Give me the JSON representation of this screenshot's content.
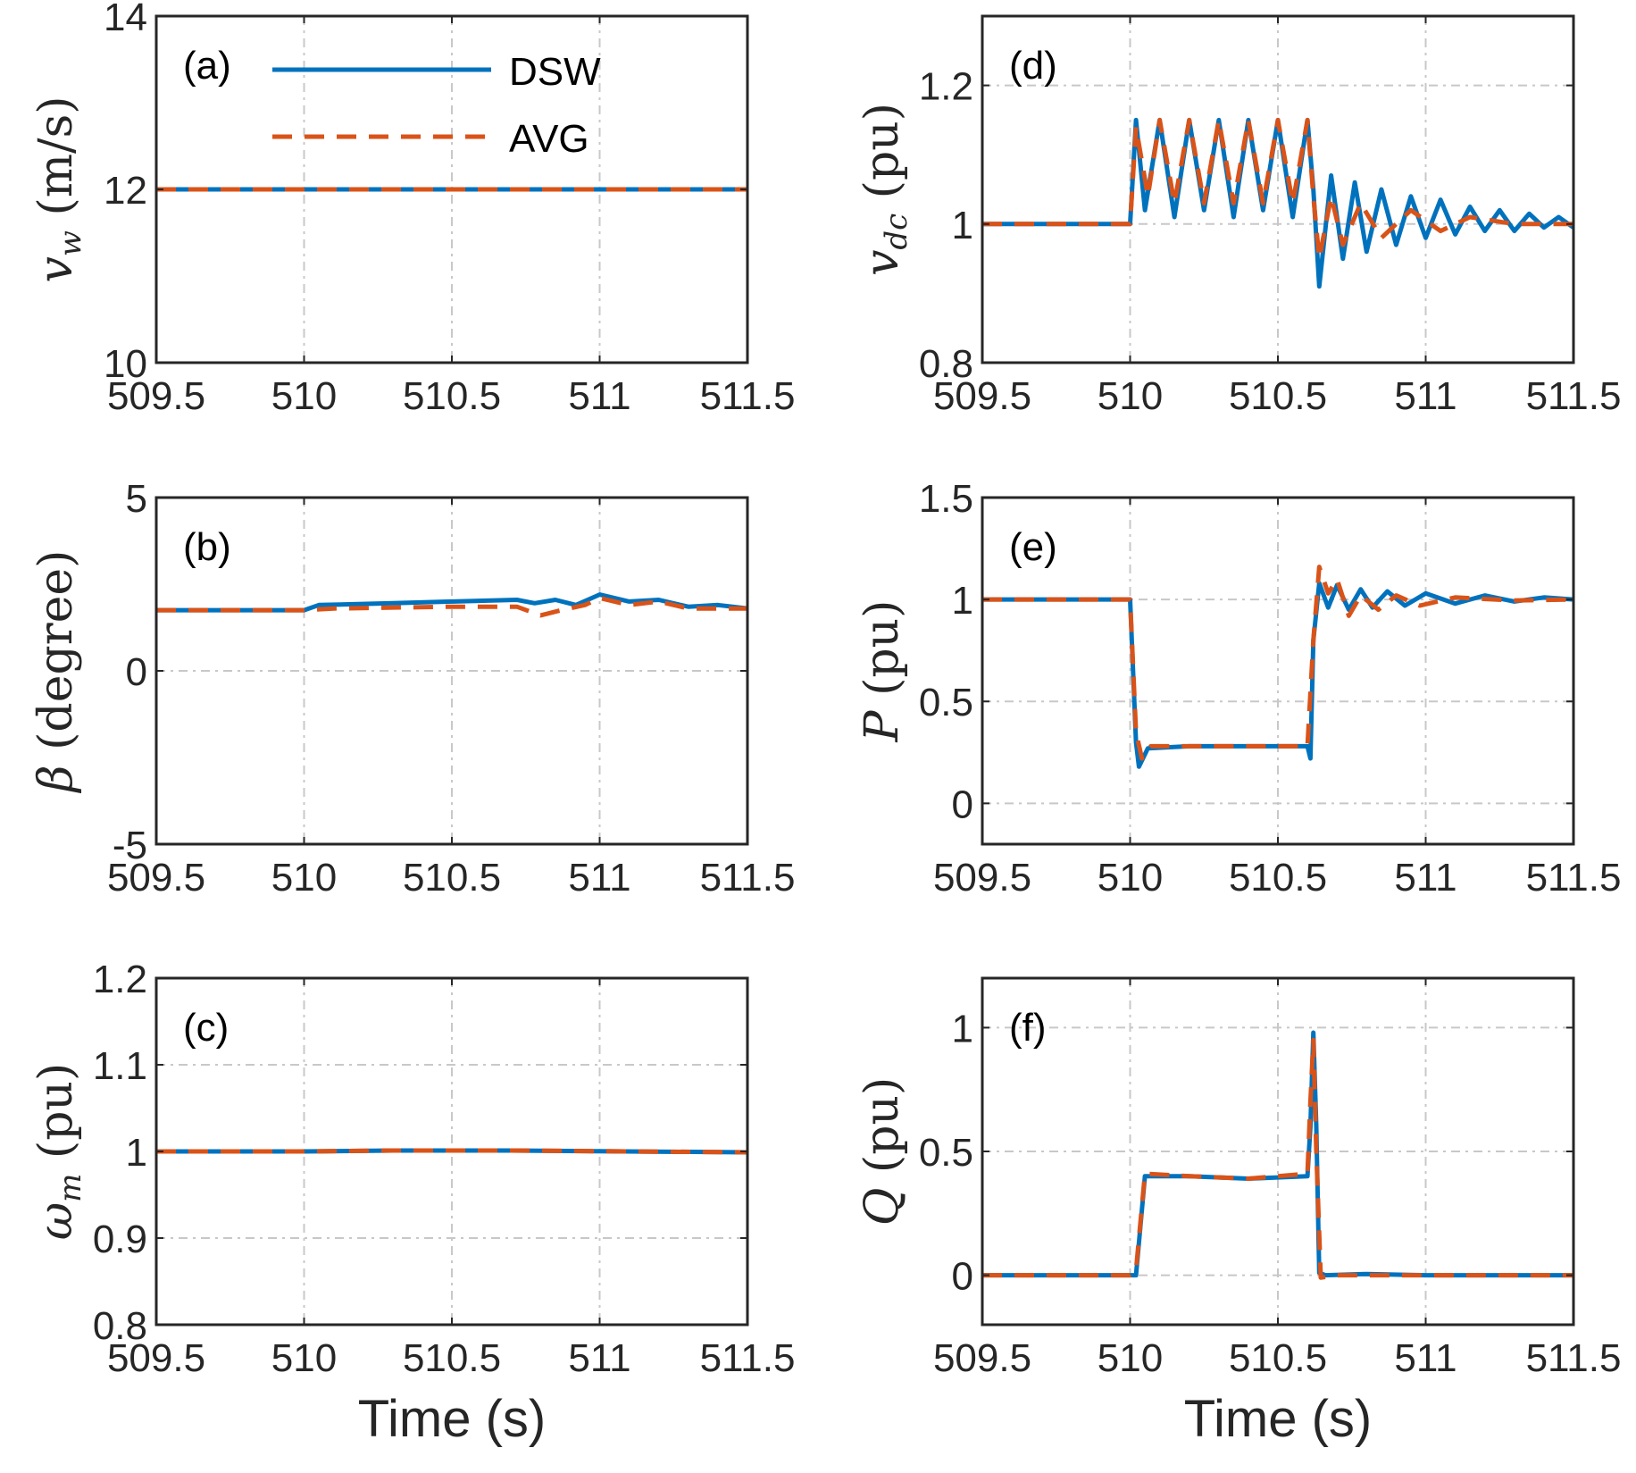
{
  "colors": {
    "dsw": "#0072BD",
    "avg": "#D95319",
    "axis": "#262626",
    "grid": "#c8c8c8"
  },
  "legend": {
    "dsw_label": "DSW",
    "avg_label": "AVG"
  },
  "xlabel": "Time (s)",
  "chart_data": [
    {
      "id": "a",
      "type": "line",
      "panel_label": "(a)",
      "ylabel": {
        "sym": "v",
        "sub": "w",
        "unit": " (m/s)"
      },
      "xlim": [
        509.5,
        511.5
      ],
      "ylim": [
        10,
        14
      ],
      "xticks": [
        509.5,
        510,
        510.5,
        511,
        511.5
      ],
      "xtick_labels": [
        "509.5",
        "510",
        "510.5",
        "511",
        "511.5"
      ],
      "yticks": [
        10,
        12,
        14
      ],
      "ytick_labels": [
        "10",
        "12",
        "14"
      ],
      "grid": true,
      "legend": true,
      "series": [
        {
          "name": "DSW",
          "points": [
            [
              509.5,
              12
            ],
            [
              511.5,
              12
            ]
          ]
        },
        {
          "name": "AVG",
          "points": [
            [
              509.5,
              12
            ],
            [
              511.5,
              12
            ]
          ]
        }
      ]
    },
    {
      "id": "b",
      "type": "line",
      "panel_label": "(b)",
      "ylabel": {
        "sym": "β",
        "sub": "",
        "unit": " (degree)"
      },
      "xlim": [
        509.5,
        511.5
      ],
      "ylim": [
        -5,
        5
      ],
      "xticks": [
        509.5,
        510,
        510.5,
        511,
        511.5
      ],
      "xtick_labels": [
        "509.5",
        "510",
        "510.5",
        "511",
        "511.5"
      ],
      "yticks": [
        -5,
        0,
        5
      ],
      "ytick_labels": [
        "-5",
        "0",
        "5"
      ],
      "grid": true,
      "legend": false,
      "series": [
        {
          "name": "DSW",
          "points": [
            [
              509.5,
              1.75
            ],
            [
              510.0,
              1.75
            ],
            [
              510.05,
              1.9
            ],
            [
              510.3,
              1.95
            ],
            [
              510.5,
              2.0
            ],
            [
              510.72,
              2.05
            ],
            [
              510.78,
              1.95
            ],
            [
              510.85,
              2.05
            ],
            [
              510.92,
              1.9
            ],
            [
              511.0,
              2.2
            ],
            [
              511.1,
              2.0
            ],
            [
              511.2,
              2.05
            ],
            [
              511.3,
              1.85
            ],
            [
              511.4,
              1.9
            ],
            [
              511.5,
              1.8
            ]
          ]
        },
        {
          "name": "AVG",
          "points": [
            [
              509.5,
              1.75
            ],
            [
              510.0,
              1.75
            ],
            [
              510.1,
              1.8
            ],
            [
              510.5,
              1.85
            ],
            [
              510.72,
              1.85
            ],
            [
              510.8,
              1.6
            ],
            [
              510.87,
              1.75
            ],
            [
              510.95,
              1.9
            ],
            [
              511.0,
              2.1
            ],
            [
              511.1,
              1.9
            ],
            [
              511.2,
              2.0
            ],
            [
              511.3,
              1.8
            ],
            [
              511.5,
              1.8
            ]
          ]
        }
      ]
    },
    {
      "id": "c",
      "type": "line",
      "panel_label": "(c)",
      "ylabel": {
        "sym": "ω",
        "sub": "m",
        "unit": " (pu)"
      },
      "xlim": [
        509.5,
        511.5
      ],
      "ylim": [
        0.8,
        1.2
      ],
      "xticks": [
        509.5,
        510,
        510.5,
        511,
        511.5
      ],
      "xtick_labels": [
        "509.5",
        "510",
        "510.5",
        "511",
        "511.5"
      ],
      "yticks": [
        0.8,
        0.9,
        1.0,
        1.1,
        1.2
      ],
      "ytick_labels": [
        "0.8",
        "0.9",
        "1",
        "1.1",
        "1.2"
      ],
      "grid": true,
      "legend": false,
      "series": [
        {
          "name": "DSW",
          "points": [
            [
              509.5,
              1.0
            ],
            [
              510.0,
              1.0
            ],
            [
              510.3,
              1.001
            ],
            [
              510.7,
              1.001
            ],
            [
              511.5,
              0.999
            ]
          ]
        },
        {
          "name": "AVG",
          "points": [
            [
              509.5,
              1.0
            ],
            [
              510.0,
              1.0
            ],
            [
              510.3,
              1.001
            ],
            [
              510.7,
              1.001
            ],
            [
              511.5,
              0.999
            ]
          ]
        }
      ]
    },
    {
      "id": "d",
      "type": "line",
      "panel_label": "(d)",
      "ylabel": {
        "sym": "v",
        "sub": "dc",
        "unit": " (pu)"
      },
      "xlim": [
        509.5,
        511.5
      ],
      "ylim": [
        0.8,
        1.3
      ],
      "xticks": [
        509.5,
        510,
        510.5,
        511,
        511.5
      ],
      "xtick_labels": [
        "509.5",
        "510",
        "510.5",
        "511",
        "511.5"
      ],
      "yticks": [
        0.8,
        1.0,
        1.2
      ],
      "ytick_labels": [
        "0.8",
        "1",
        "1.2"
      ],
      "grid": true,
      "legend": false,
      "series": [
        {
          "name": "DSW",
          "points": [
            [
              509.5,
              1.0
            ],
            [
              510.0,
              1.0
            ],
            [
              510.02,
              1.15
            ],
            [
              510.05,
              1.02
            ],
            [
              510.1,
              1.15
            ],
            [
              510.15,
              1.01
            ],
            [
              510.2,
              1.15
            ],
            [
              510.25,
              1.02
            ],
            [
              510.3,
              1.15
            ],
            [
              510.35,
              1.01
            ],
            [
              510.4,
              1.15
            ],
            [
              510.45,
              1.02
            ],
            [
              510.5,
              1.15
            ],
            [
              510.55,
              1.01
            ],
            [
              510.6,
              1.15
            ],
            [
              510.62,
              1.05
            ],
            [
              510.64,
              0.91
            ],
            [
              510.68,
              1.07
            ],
            [
              510.72,
              0.95
            ],
            [
              510.76,
              1.06
            ],
            [
              510.8,
              0.96
            ],
            [
              510.85,
              1.05
            ],
            [
              510.9,
              0.97
            ],
            [
              510.95,
              1.04
            ],
            [
              511.0,
              0.98
            ],
            [
              511.05,
              1.035
            ],
            [
              511.1,
              0.985
            ],
            [
              511.15,
              1.025
            ],
            [
              511.2,
              0.99
            ],
            [
              511.25,
              1.02
            ],
            [
              511.3,
              0.99
            ],
            [
              511.35,
              1.015
            ],
            [
              511.4,
              0.995
            ],
            [
              511.45,
              1.01
            ],
            [
              511.5,
              0.995
            ]
          ]
        },
        {
          "name": "AVG",
          "points": [
            [
              509.5,
              1.0
            ],
            [
              510.0,
              1.0
            ],
            [
              510.02,
              1.14
            ],
            [
              510.06,
              1.04
            ],
            [
              510.1,
              1.15
            ],
            [
              510.15,
              1.03
            ],
            [
              510.2,
              1.15
            ],
            [
              510.25,
              1.03
            ],
            [
              510.3,
              1.15
            ],
            [
              510.35,
              1.03
            ],
            [
              510.4,
              1.15
            ],
            [
              510.45,
              1.03
            ],
            [
              510.5,
              1.15
            ],
            [
              510.55,
              1.03
            ],
            [
              510.6,
              1.15
            ],
            [
              510.62,
              1.04
            ],
            [
              510.64,
              0.95
            ],
            [
              510.68,
              1.04
            ],
            [
              510.72,
              0.97
            ],
            [
              510.78,
              1.03
            ],
            [
              510.85,
              0.98
            ],
            [
              510.95,
              1.02
            ],
            [
              511.05,
              0.99
            ],
            [
              511.15,
              1.01
            ],
            [
              511.3,
              1.0
            ],
            [
              511.5,
              1.0
            ]
          ]
        }
      ]
    },
    {
      "id": "e",
      "type": "line",
      "panel_label": "(e)",
      "ylabel": {
        "sym": "P",
        "sub": "",
        "unit": " (pu)"
      },
      "xlim": [
        509.5,
        511.5
      ],
      "ylim": [
        -0.2,
        1.5
      ],
      "xticks": [
        509.5,
        510,
        510.5,
        511,
        511.5
      ],
      "xtick_labels": [
        "509.5",
        "510",
        "510.5",
        "511",
        "511.5"
      ],
      "yticks": [
        0,
        0.5,
        1.0,
        1.5
      ],
      "ytick_labels": [
        "0",
        "0.5",
        "1",
        "1.5"
      ],
      "grid": true,
      "legend": false,
      "series": [
        {
          "name": "DSW",
          "points": [
            [
              509.5,
              1.0
            ],
            [
              510.0,
              1.0
            ],
            [
              510.02,
              0.3
            ],
            [
              510.03,
              0.18
            ],
            [
              510.06,
              0.27
            ],
            [
              510.2,
              0.28
            ],
            [
              510.4,
              0.28
            ],
            [
              510.6,
              0.28
            ],
            [
              510.61,
              0.22
            ],
            [
              510.62,
              0.8
            ],
            [
              510.64,
              1.08
            ],
            [
              510.67,
              0.96
            ],
            [
              510.7,
              1.07
            ],
            [
              510.74,
              0.95
            ],
            [
              510.78,
              1.05
            ],
            [
              510.82,
              0.96
            ],
            [
              510.87,
              1.04
            ],
            [
              510.93,
              0.97
            ],
            [
              511.0,
              1.03
            ],
            [
              511.1,
              0.98
            ],
            [
              511.2,
              1.02
            ],
            [
              511.3,
              0.99
            ],
            [
              511.4,
              1.01
            ],
            [
              511.5,
              1.0
            ]
          ]
        },
        {
          "name": "AVG",
          "points": [
            [
              509.5,
              1.0
            ],
            [
              510.0,
              1.0
            ],
            [
              510.02,
              0.35
            ],
            [
              510.04,
              0.22
            ],
            [
              510.07,
              0.28
            ],
            [
              510.3,
              0.28
            ],
            [
              510.6,
              0.28
            ],
            [
              510.62,
              0.8
            ],
            [
              510.64,
              1.16
            ],
            [
              510.67,
              1.03
            ],
            [
              510.7,
              1.1
            ],
            [
              510.74,
              0.92
            ],
            [
              510.78,
              1.02
            ],
            [
              510.84,
              0.95
            ],
            [
              510.9,
              1.02
            ],
            [
              510.98,
              0.97
            ],
            [
              511.1,
              1.01
            ],
            [
              511.3,
              0.995
            ],
            [
              511.5,
              1.0
            ]
          ]
        }
      ]
    },
    {
      "id": "f",
      "type": "line",
      "panel_label": "(f)",
      "ylabel": {
        "sym": "Q",
        "sub": "",
        "unit": " (pu)"
      },
      "xlim": [
        509.5,
        511.5
      ],
      "ylim": [
        -0.2,
        1.2
      ],
      "xticks": [
        509.5,
        510,
        510.5,
        511,
        511.5
      ],
      "xtick_labels": [
        "509.5",
        "510",
        "510.5",
        "511",
        "511.5"
      ],
      "yticks": [
        0,
        0.5,
        1.0
      ],
      "ytick_labels": [
        "0",
        "0.5",
        "1"
      ],
      "grid": true,
      "legend": false,
      "series": [
        {
          "name": "DSW",
          "points": [
            [
              509.5,
              0.0
            ],
            [
              510.0,
              0.0
            ],
            [
              510.02,
              0.0
            ],
            [
              510.05,
              0.4
            ],
            [
              510.2,
              0.4
            ],
            [
              510.4,
              0.39
            ],
            [
              510.6,
              0.4
            ],
            [
              510.61,
              0.6
            ],
            [
              510.62,
              0.98
            ],
            [
              510.63,
              0.6
            ],
            [
              510.64,
              0.01
            ],
            [
              510.66,
              0.0
            ],
            [
              510.8,
              0.005
            ],
            [
              511.0,
              0.0
            ],
            [
              511.5,
              0.0
            ]
          ]
        },
        {
          "name": "AVG",
          "points": [
            [
              509.5,
              0.0
            ],
            [
              510.0,
              0.0
            ],
            [
              510.02,
              0.02
            ],
            [
              510.05,
              0.41
            ],
            [
              510.2,
              0.4
            ],
            [
              510.4,
              0.39
            ],
            [
              510.6,
              0.41
            ],
            [
              510.61,
              0.7
            ],
            [
              510.62,
              0.95
            ],
            [
              510.63,
              0.5
            ],
            [
              510.645,
              -0.01
            ],
            [
              510.7,
              0.0
            ],
            [
              511.5,
              0.0
            ]
          ]
        }
      ]
    }
  ]
}
